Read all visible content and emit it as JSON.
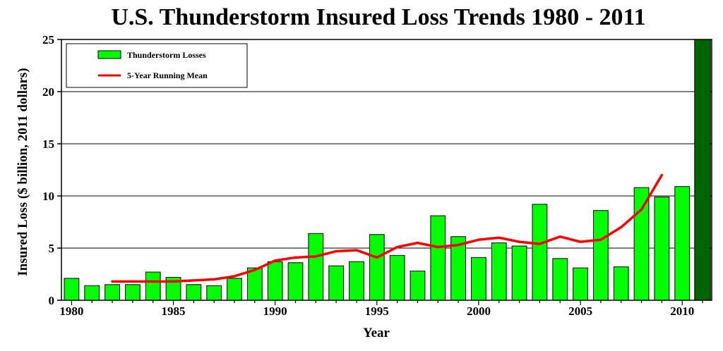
{
  "chart_data": {
    "type": "bar",
    "title": "U.S. Thunderstorm Insured Loss Trends 1980 - 2011",
    "xlabel": "Year",
    "ylabel": "Insured Loss ($ billion, 2011 dollars)",
    "ylim": [
      0,
      25
    ],
    "yticks": [
      0,
      5,
      10,
      15,
      20,
      25
    ],
    "xticks": [
      "1980",
      "1985",
      "1990",
      "1995",
      "2000",
      "2005",
      "2010"
    ],
    "grid": true,
    "legend_position": "top-left",
    "x": [
      1980,
      1981,
      1982,
      1983,
      1984,
      1985,
      1986,
      1987,
      1988,
      1989,
      1990,
      1991,
      1992,
      1993,
      1994,
      1995,
      1996,
      1997,
      1998,
      1999,
      2000,
      2001,
      2002,
      2003,
      2004,
      2005,
      2006,
      2007,
      2008,
      2009,
      2010,
      2011
    ],
    "series": [
      {
        "name": "Thunderstorm Losses",
        "type": "bar",
        "color": "#00ff00",
        "values": [
          2.1,
          1.4,
          1.5,
          1.5,
          2.7,
          2.2,
          1.5,
          1.4,
          2.1,
          3.1,
          3.7,
          3.6,
          6.4,
          3.3,
          3.7,
          6.3,
          4.3,
          2.8,
          8.1,
          6.1,
          4.1,
          5.5,
          5.2,
          9.2,
          4.0,
          3.1,
          8.6,
          3.2,
          10.8,
          9.9,
          10.9,
          25.0
        ],
        "highlight_color": "#006400"
      },
      {
        "name": "5-Year Running Mean",
        "type": "line",
        "color": "#ff0000",
        "x": [
          1982,
          1983,
          1984,
          1985,
          1986,
          1987,
          1988,
          1989,
          1990,
          1991,
          1992,
          1993,
          1994,
          1995,
          1996,
          1997,
          1998,
          1999,
          2000,
          2001,
          2002,
          2003,
          2004,
          2005,
          2006,
          2007,
          2008,
          2009
        ],
        "values": [
          1.8,
          1.8,
          1.8,
          1.8,
          1.9,
          2.0,
          2.3,
          2.9,
          3.8,
          4.1,
          4.2,
          4.7,
          4.8,
          4.1,
          5.1,
          5.5,
          5.1,
          5.3,
          5.8,
          6.0,
          5.6,
          5.4,
          6.1,
          5.6,
          5.8,
          7.0,
          8.7,
          12.0
        ]
      }
    ]
  }
}
